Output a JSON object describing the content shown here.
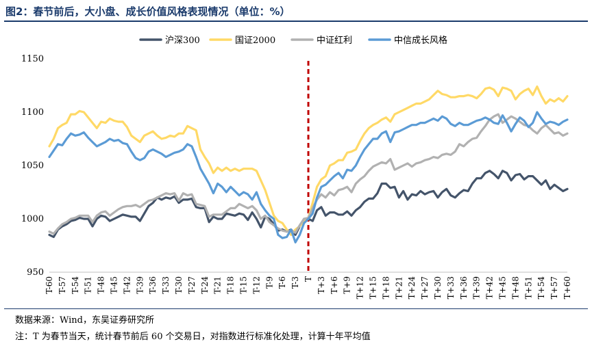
{
  "header": {
    "title": "图2：春节前后，大小盘、成长价值风格表现情况（单位：%）"
  },
  "footer": {
    "source": "数据来源：Wind，东吴证券研究所",
    "note": "注：T 为春节当天，统计春节前后 60 个交易日，对指数进行标准化处理，计算十年平均值"
  },
  "colors": {
    "hs300": "#44546a",
    "gz2000": "#ffd966",
    "zzhl": "#b1b1b1",
    "zxcz": "#5b9bd5",
    "event_line": "#c00000",
    "title": "#1a3a6b"
  },
  "chart_data": {
    "type": "line",
    "legend_position": "top",
    "grid": false,
    "ylim": [
      950,
      1150
    ],
    "yticks": [
      950,
      1000,
      1050,
      1100,
      1150
    ],
    "x_tick_labels": [
      "T-60",
      "T-57",
      "T-54",
      "T-51",
      "T-48",
      "T-45",
      "T-42",
      "T-39",
      "T-36",
      "T-33",
      "T-30",
      "T-27",
      "T-24",
      "T-21",
      "T-18",
      "T-15",
      "T-12",
      "T-9",
      "T-6",
      "T-3",
      "T",
      "T+3",
      "T+6",
      "T+9",
      "T+12",
      "T+15",
      "T+18",
      "T+21",
      "T+24",
      "T+27",
      "T+30",
      "T+33",
      "T+36",
      "T+39",
      "T+42",
      "T+45",
      "T+48",
      "T+51",
      "T+54",
      "T+57",
      "T+60"
    ],
    "event_x": "T",
    "x": [
      -60,
      -59,
      -58,
      -57,
      -56,
      -55,
      -54,
      -53,
      -52,
      -51,
      -50,
      -49,
      -48,
      -47,
      -46,
      -45,
      -44,
      -43,
      -42,
      -41,
      -40,
      -39,
      -38,
      -37,
      -36,
      -35,
      -34,
      -33,
      -32,
      -31,
      -30,
      -29,
      -28,
      -27,
      -26,
      -25,
      -24,
      -23,
      -22,
      -21,
      -20,
      -19,
      -18,
      -17,
      -16,
      -15,
      -14,
      -13,
      -12,
      -11,
      -10,
      -9,
      -8,
      -7,
      -6,
      -5,
      -4,
      -3,
      -2,
      -1,
      0,
      1,
      2,
      3,
      4,
      5,
      6,
      7,
      8,
      9,
      10,
      11,
      12,
      13,
      14,
      15,
      16,
      17,
      18,
      19,
      20,
      21,
      22,
      23,
      24,
      25,
      26,
      27,
      28,
      29,
      30,
      31,
      32,
      33,
      34,
      35,
      36,
      37,
      38,
      39,
      40,
      41,
      42,
      43,
      44,
      45,
      46,
      47,
      48,
      49,
      50,
      51,
      52,
      53,
      54,
      55,
      56,
      57,
      58,
      59,
      60
    ],
    "series": [
      {
        "name": "沪深300",
        "color_key": "hs300",
        "values": [
          985,
          983,
          990,
          993,
          995,
          998,
          999,
          1001,
          1000,
          1000,
          993,
          1000,
          1003,
          1002,
          998,
          1000,
          1002,
          1004,
          1003,
          1002,
          1002,
          998,
          1005,
          1012,
          1015,
          1020,
          1018,
          1020,
          1019,
          1021,
          1015,
          1018,
          1018,
          1019,
          1011,
          1010,
          1010,
          997,
          1002,
          1000,
          1000,
          1005,
          1004,
          1003,
          1005,
          1004,
          999,
          1006,
          1000,
          992,
          1002,
          1000,
          995,
          989,
          990,
          988,
          990,
          985,
          993,
          1000,
          1000,
          998,
          1008,
          1011,
          1003,
          1006,
          1006,
          1004,
          1004,
          1007,
          1003,
          1008,
          1011,
          1016,
          1019,
          1019,
          1024,
          1033,
          1033,
          1029,
          1030,
          1020,
          1026,
          1018,
          1023,
          1022,
          1026,
          1023,
          1025,
          1026,
          1020,
          1025,
          1028,
          1022,
          1020,
          1024,
          1027,
          1026,
          1033,
          1038,
          1038,
          1043,
          1045,
          1042,
          1038,
          1045,
          1043,
          1036,
          1041,
          1042,
          1037,
          1040,
          1040,
          1036,
          1032,
          1036,
          1028,
          1032,
          1029,
          1026,
          1028
        ]
      },
      {
        "name": "国证2000",
        "color_key": "gz2000",
        "values": [
          1068,
          1075,
          1085,
          1088,
          1090,
          1098,
          1098,
          1101,
          1100,
          1095,
          1090,
          1085,
          1091,
          1090,
          1094,
          1092,
          1091,
          1091,
          1086,
          1078,
          1075,
          1072,
          1078,
          1080,
          1082,
          1078,
          1075,
          1076,
          1078,
          1077,
          1080,
          1080,
          1087,
          1085,
          1083,
          1065,
          1058,
          1052,
          1043,
          1048,
          1045,
          1048,
          1045,
          1047,
          1045,
          1047,
          1047,
          1047,
          1045,
          1036,
          1027,
          1015,
          1003,
          998,
          996,
          990,
          985,
          990,
          993,
          998,
          1001,
          1015,
          1030,
          1037,
          1040,
          1050,
          1052,
          1055,
          1055,
          1062,
          1063,
          1065,
          1073,
          1080,
          1085,
          1088,
          1090,
          1093,
          1095,
          1091,
          1098,
          1100,
          1102,
          1104,
          1106,
          1108,
          1108,
          1110,
          1112,
          1116,
          1120,
          1117,
          1116,
          1114,
          1114,
          1115,
          1115,
          1116,
          1115,
          1113,
          1117,
          1122,
          1123,
          1121,
          1115,
          1123,
          1122,
          1120,
          1112,
          1117,
          1120,
          1122,
          1116,
          1124,
          1115,
          1108,
          1112,
          1110,
          1113,
          1110,
          1115
        ]
      },
      {
        "name": "中证红利",
        "color_key": "zzhl",
        "values": [
          988,
          986,
          991,
          995,
          997,
          1000,
          1001,
          1003,
          1003,
          1003,
          997,
          1003,
          1006,
          1007,
          1003,
          1006,
          1009,
          1011,
          1012,
          1012,
          1013,
          1011,
          1014,
          1017,
          1018,
          1020,
          1022,
          1024,
          1023,
          1024,
          1017,
          1024,
          1022,
          1023,
          1014,
          1013,
          1012,
          1002,
          1004,
          1004,
          1004,
          1007,
          1010,
          1010,
          1014,
          1012,
          1010,
          1012,
          1008,
          1000,
          1003,
          997,
          994,
          991,
          989,
          988,
          989,
          987,
          994,
          1000,
          1001,
          1010,
          1018,
          1023,
          1020,
          1025,
          1022,
          1027,
          1028,
          1030,
          1025,
          1033,
          1037,
          1040,
          1045,
          1049,
          1051,
          1053,
          1052,
          1056,
          1046,
          1048,
          1050,
          1052,
          1049,
          1052,
          1053,
          1055,
          1056,
          1058,
          1057,
          1060,
          1061,
          1060,
          1063,
          1070,
          1068,
          1072,
          1075,
          1076,
          1082,
          1087,
          1093,
          1096,
          1098,
          1090,
          1093,
          1096,
          1094,
          1091,
          1088,
          1087,
          1083,
          1080,
          1085,
          1088,
          1084,
          1080,
          1081,
          1078,
          1080
        ]
      },
      {
        "name": "中信成长风格",
        "color_key": "zxcz",
        "values": [
          1058,
          1064,
          1070,
          1069,
          1075,
          1080,
          1078,
          1079,
          1081,
          1076,
          1072,
          1068,
          1070,
          1072,
          1075,
          1073,
          1074,
          1071,
          1070,
          1063,
          1057,
          1055,
          1057,
          1063,
          1065,
          1063,
          1061,
          1058,
          1060,
          1062,
          1063,
          1065,
          1070,
          1068,
          1058,
          1047,
          1040,
          1033,
          1024,
          1033,
          1030,
          1025,
          1030,
          1026,
          1022,
          1025,
          1023,
          1018,
          1025,
          1014,
          1008,
          1003,
          1000,
          985,
          982,
          983,
          990,
          978,
          985,
          996,
          1000,
          1005,
          1020,
          1030,
          1032,
          1036,
          1040,
          1043,
          1038,
          1046,
          1045,
          1050,
          1058,
          1065,
          1070,
          1075,
          1075,
          1080,
          1082,
          1072,
          1081,
          1082,
          1084,
          1086,
          1088,
          1088,
          1090,
          1090,
          1092,
          1094,
          1092,
          1096,
          1094,
          1089,
          1087,
          1090,
          1088,
          1088,
          1090,
          1092,
          1093,
          1095,
          1093,
          1090,
          1089,
          1097,
          1090,
          1082,
          1089,
          1095,
          1092,
          1086,
          1090,
          1100,
          1094,
          1089,
          1091,
          1090,
          1088,
          1091,
          1093
        ]
      }
    ]
  }
}
